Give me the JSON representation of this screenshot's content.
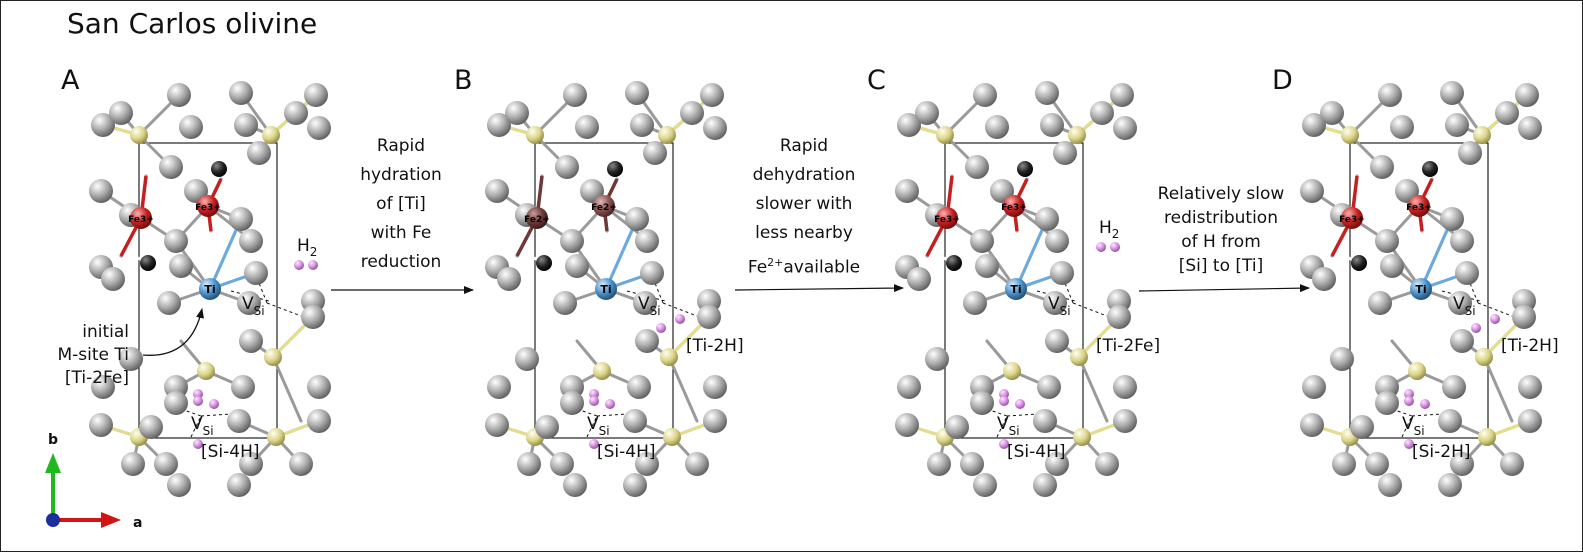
{
  "title": "San Carlos olivine",
  "panels": [
    {
      "letter": "A",
      "atoms": {
        "left_fe": "Fe3+",
        "right_fe": "Fe3+",
        "ti": "Ti"
      },
      "left_fe_color": "#c42020",
      "right_fe_color": "#c42020",
      "site_upper": "[Ti-2Fe]",
      "site_lower": "[Si-4H]",
      "vsi": "V",
      "vsi_sub": "Si",
      "h2": "H",
      "h2_sub": "2",
      "annotation": [
        "initial",
        "M-site Ti",
        "[Ti-2Fe]"
      ]
    },
    {
      "letter": "B",
      "atoms": {
        "left_fe": "Fe2+",
        "right_fe": "Fe2+",
        "ti": "Ti"
      },
      "left_fe_color": "#6e3838",
      "right_fe_color": "#8a5050",
      "site_upper": "[Ti-2H]",
      "site_lower": "[Si-4H]",
      "vsi": "V",
      "vsi_sub": "Si"
    },
    {
      "letter": "C",
      "atoms": {
        "left_fe": "Fe3+",
        "right_fe": "Fe3+",
        "ti": "Ti"
      },
      "left_fe_color": "#c42020",
      "right_fe_color": "#c42020",
      "site_upper": "[Ti-2Fe]",
      "site_lower": "[Si-4H]",
      "vsi": "V",
      "vsi_sub": "Si",
      "h2": "H",
      "h2_sub": "2"
    },
    {
      "letter": "D",
      "atoms": {
        "left_fe": "Fe3+",
        "right_fe": "Fe3+",
        "ti": "Ti"
      },
      "left_fe_color": "#c42020",
      "right_fe_color": "#c42020",
      "site_upper": "[Ti-2H]",
      "site_lower": "[Si-2H]",
      "vsi": "V",
      "vsi_sub": "Si"
    }
  ],
  "steps": [
    {
      "lines": [
        "Rapid",
        "hydration",
        "of [Ti]",
        "with Fe",
        "reduction"
      ]
    },
    {
      "lines": [
        "Rapid",
        "dehydration",
        "slower with",
        "less nearby"
      ],
      "last_main": "Fe",
      "last_sup": "2+",
      "last_rest": "available"
    },
    {
      "lines": [
        "Relatively slow",
        "redistribution",
        "of H from",
        "[Si] to [Ti]"
      ]
    }
  ],
  "axes": {
    "b": "b",
    "a": "a"
  },
  "colors": {
    "o": "#9a9a9a",
    "si": "#d8d07a",
    "ti": "#4a90c8",
    "h": "#d58ee0",
    "oh": "#252525"
  }
}
